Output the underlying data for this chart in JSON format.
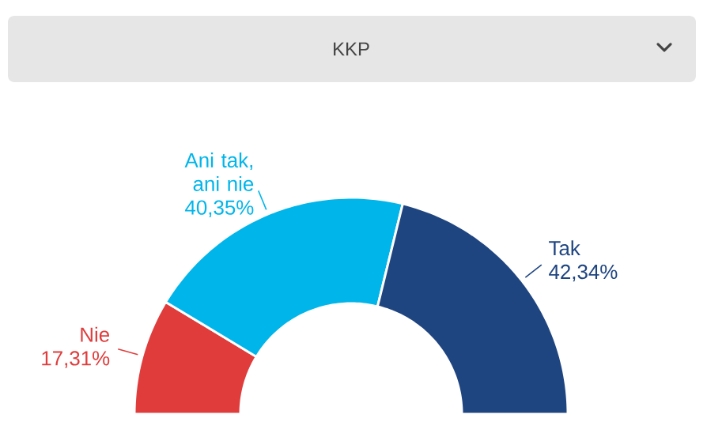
{
  "chart_data": {
    "type": "donut",
    "title": "KKP",
    "categories": [
      "Nie",
      "Ani tak, ani nie",
      "Tak"
    ],
    "values": [
      17.31,
      40.35,
      42.34
    ],
    "value_labels": [
      "17,31%",
      "40,35%",
      "42,34%"
    ],
    "colors": [
      "#e03c3c",
      "#00b5ea",
      "#1f4580"
    ]
  }
}
